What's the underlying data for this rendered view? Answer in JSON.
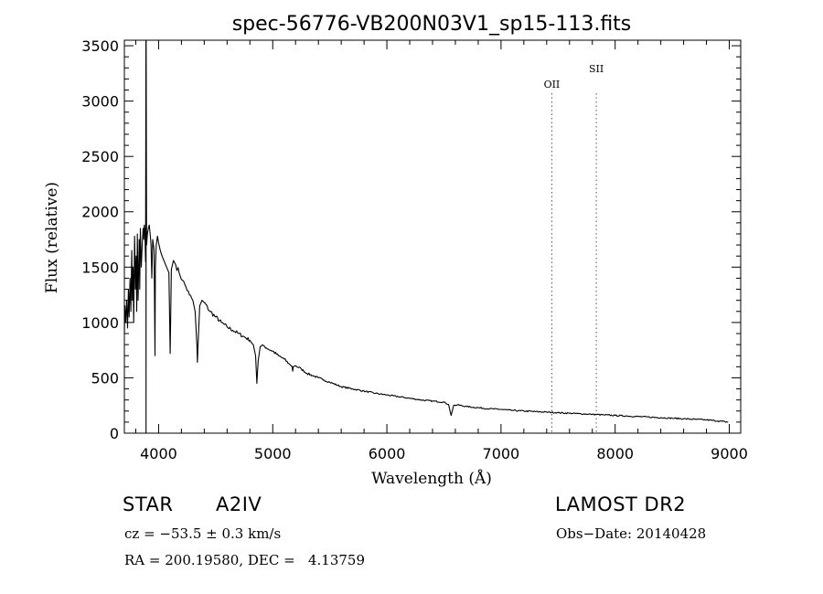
{
  "chart_data": {
    "type": "line",
    "title": "spec-56776-VB200N03V1_sp15-113.fits",
    "xlabel": "Wavelength (Å)",
    "ylabel": "Flux (relative)",
    "xlim": [
      3700,
      9100
    ],
    "ylim": [
      0,
      3550
    ],
    "xticks": [
      4000,
      5000,
      6000,
      7000,
      8000,
      9000
    ],
    "yticks": [
      0,
      500,
      1000,
      1500,
      2000,
      2500,
      3000,
      3500
    ],
    "grid": false,
    "line_color": "#000000",
    "series": [
      {
        "x": [
          3700,
          3705,
          3712,
          3720,
          3728,
          3735,
          3742,
          3750,
          3757,
          3765,
          3770,
          3776,
          3782,
          3790,
          3797,
          3803,
          3808,
          3814,
          3820,
          3830,
          3835,
          3840,
          3848,
          3856,
          3864,
          3870,
          3875,
          3880,
          3886,
          3889,
          3890,
          3891,
          3895,
          3902,
          3910,
          3918,
          3926,
          3934,
          3940,
          3948,
          3960,
          3968,
          3972,
          3980,
          3990,
          4000,
          4015,
          4030,
          4050,
          4070,
          4090,
          4101,
          4112,
          4130,
          4150,
          4180,
          4210,
          4240,
          4270,
          4300,
          4320,
          4335,
          4340,
          4345,
          4360,
          4380,
          4400,
          4450,
          4500,
          4550,
          4600,
          4650,
          4700,
          4750,
          4800,
          4830,
          4850,
          4861,
          4872,
          4890,
          4920,
          4960,
          5000,
          5050,
          5100,
          5150,
          5170,
          5175,
          5180,
          5200,
          5250,
          5300,
          5350,
          5400,
          5450,
          5500,
          5600,
          5700,
          5800,
          5900,
          6000,
          6100,
          6200,
          6300,
          6400,
          6500,
          6540,
          6563,
          6585,
          6620,
          6700,
          6800,
          6900,
          7000,
          7100,
          7200,
          7300,
          7400,
          7500,
          7600,
          7700,
          7800,
          7900,
          8000,
          8100,
          8200,
          8300,
          8400,
          8500,
          8600,
          8700,
          8800,
          8900,
          8990
        ],
        "y": [
          900,
          1150,
          1000,
          1200,
          950,
          1300,
          1050,
          1400,
          1100,
          1650,
          1200,
          1500,
          1000,
          1780,
          1300,
          1600,
          1100,
          1800,
          1200,
          1750,
          1300,
          1850,
          1500,
          1700,
          1850,
          1750,
          1880,
          1800,
          1550,
          3550,
          0,
          3550,
          1700,
          1800,
          1850,
          1880,
          1800,
          1700,
          1400,
          1750,
          1650,
          700,
          1500,
          1700,
          1780,
          1720,
          1650,
          1600,
          1550,
          1500,
          1450,
          720,
          1480,
          1560,
          1520,
          1450,
          1380,
          1320,
          1250,
          1200,
          1100,
          800,
          640,
          780,
          1150,
          1200,
          1180,
          1100,
          1050,
          1000,
          960,
          930,
          900,
          870,
          840,
          800,
          700,
          450,
          650,
          780,
          790,
          760,
          740,
          700,
          670,
          620,
          600,
          560,
          600,
          610,
          580,
          540,
          520,
          500,
          480,
          460,
          420,
          400,
          380,
          360,
          345,
          330,
          315,
          300,
          290,
          280,
          260,
          160,
          250,
          255,
          240,
          230,
          220,
          215,
          205,
          200,
          195,
          190,
          185,
          180,
          175,
          170,
          165,
          160,
          155,
          150,
          145,
          140,
          135,
          130,
          125,
          120,
          110,
          100
        ]
      }
    ],
    "vlines": [
      {
        "x": 7445,
        "label": "OII",
        "style": "dotted"
      },
      {
        "x": 7835,
        "label": "SII",
        "style": "dotted"
      }
    ]
  },
  "info": {
    "object_class": "STAR",
    "subclass": "A2IV",
    "survey": "LAMOST DR2",
    "velocity": "cz = −53.5 ± 0.3 km/s",
    "obs_date": "Obs−Date: 20140428",
    "coords": "RA = 200.19580, DEC =   4.13759"
  }
}
